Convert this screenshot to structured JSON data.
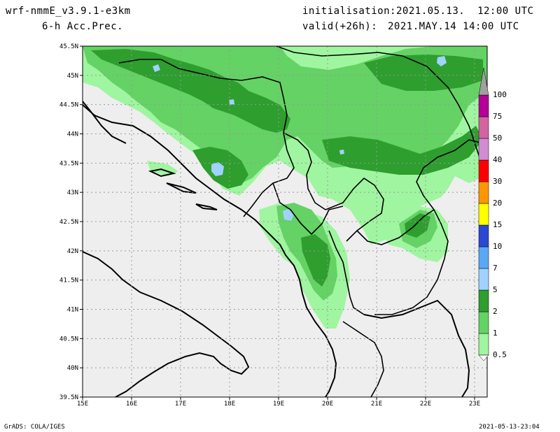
{
  "header": {
    "model": "wrf-nmmE_v3.9.1-e3km",
    "field": "6-h Acc.Prec.",
    "init_label": "initialisation:",
    "init_value": "2021.05.13.  12:00 UTC",
    "valid_label": "valid(+26h):",
    "valid_value": "2021.MAY.14 14:00 UTC"
  },
  "map": {
    "land_color": "#eeeeee",
    "border_color": "#000000",
    "grid_color": "#999999",
    "lat_labels": [
      "45.5N",
      "45N",
      "44.5N",
      "44N",
      "43.5N",
      "43N",
      "42.5N",
      "42N",
      "41.5N",
      "41N",
      "40.5N",
      "40N",
      "39.5N"
    ],
    "lon_labels": [
      "15E",
      "16E",
      "17E",
      "18E",
      "19E",
      "20E",
      "21E",
      "22E",
      "23E"
    ]
  },
  "legend": {
    "levels": [
      {
        "label": "0.5",
        "color": "#a0f5a0"
      },
      {
        "label": "1",
        "color": "#64d264"
      },
      {
        "label": "2",
        "color": "#2e9e2e"
      },
      {
        "label": "5",
        "color": "#a0d2ff"
      },
      {
        "label": "7",
        "color": "#5aa8f5"
      },
      {
        "label": "10",
        "color": "#2a48d2"
      },
      {
        "label": "15",
        "color": "#ffff00"
      },
      {
        "label": "20",
        "color": "#ff9600"
      },
      {
        "label": "30",
        "color": "#ff0000"
      },
      {
        "label": "40",
        "color": "#d28cd2"
      },
      {
        "label": "50",
        "color": "#d264a0"
      },
      {
        "label": "75",
        "color": "#b40096"
      },
      {
        "label": "100",
        "color": "#a0a0a0"
      }
    ]
  },
  "footer": {
    "left": "GrADS: COLA/IGES",
    "right": "2021-05-13-23:04"
  }
}
